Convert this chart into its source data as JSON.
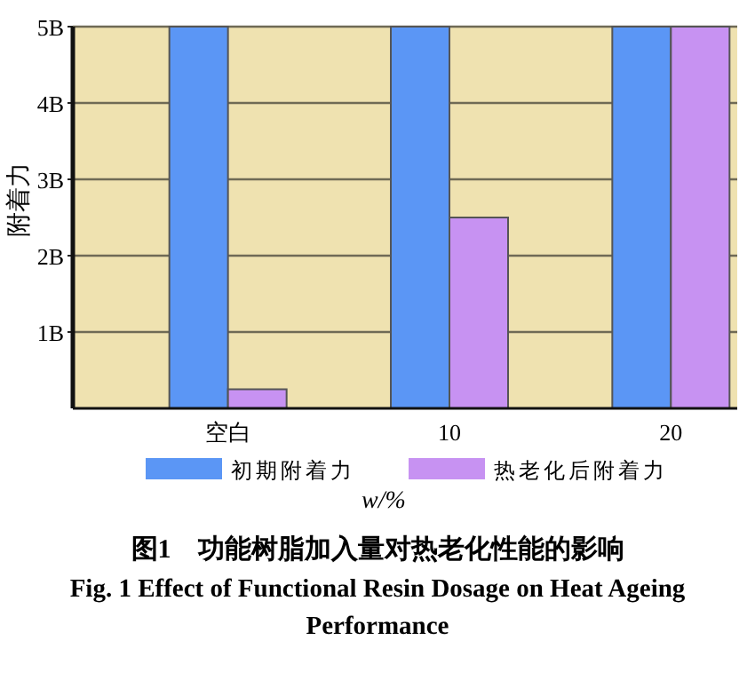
{
  "chart_data": {
    "type": "bar",
    "title": "图1　功能树脂加入量对热老化性能的影响",
    "subtitle": "Fig. 1  Effect of Functional Resin Dosage on Heat Ageing Performance",
    "xlabel": "w/%",
    "ylabel": "附着力",
    "categories": [
      "空白",
      "10",
      "20"
    ],
    "series": [
      {
        "name": "初期附着力",
        "color": "#5b96f5",
        "values": [
          5,
          5,
          5
        ]
      },
      {
        "name": "热老化后附着力",
        "color": "#c792f2",
        "values": [
          0.25,
          2.5,
          5
        ]
      }
    ],
    "ylim": [
      0,
      5
    ],
    "yticks": [
      {
        "value": 1,
        "label": "1B"
      },
      {
        "value": 2,
        "label": "2B"
      },
      {
        "value": 3,
        "label": "3B"
      },
      {
        "value": 4,
        "label": "4B"
      },
      {
        "value": 5,
        "label": "5B"
      }
    ],
    "grid": "y",
    "legend": "bottom"
  }
}
